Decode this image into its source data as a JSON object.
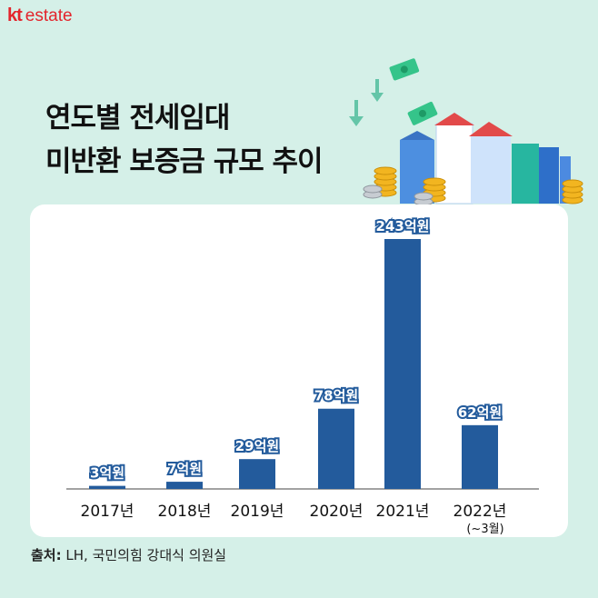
{
  "brand": {
    "kt": "kt",
    "name": "estate"
  },
  "title": {
    "line1": "연도별 전세임대",
    "line2": "미반환 보증금 규모 추이"
  },
  "source": {
    "label": "출처:",
    "text": "LH, 국민의힘 강대식 의원실"
  },
  "colors": {
    "bar": "#235b9c",
    "label_bg": "#235b9c",
    "brand": "#e3252c",
    "background": "#d5f0e8"
  },
  "chart_data": {
    "type": "bar",
    "categories": [
      "2017년",
      "2018년",
      "2019년",
      "2020년",
      "2021년",
      "2022년"
    ],
    "category_sublabels": [
      "",
      "",
      "",
      "",
      "",
      "(~3월)"
    ],
    "values": [
      3,
      7,
      29,
      78,
      243,
      62
    ],
    "value_labels": [
      "3억원",
      "7억원",
      "29억원",
      "78억원",
      "243억원",
      "62억원"
    ],
    "unit": "억원",
    "title": "연도별 전세임대 미반환 보증금 규모 추이",
    "xlabel": "",
    "ylabel": "",
    "grid": false
  }
}
